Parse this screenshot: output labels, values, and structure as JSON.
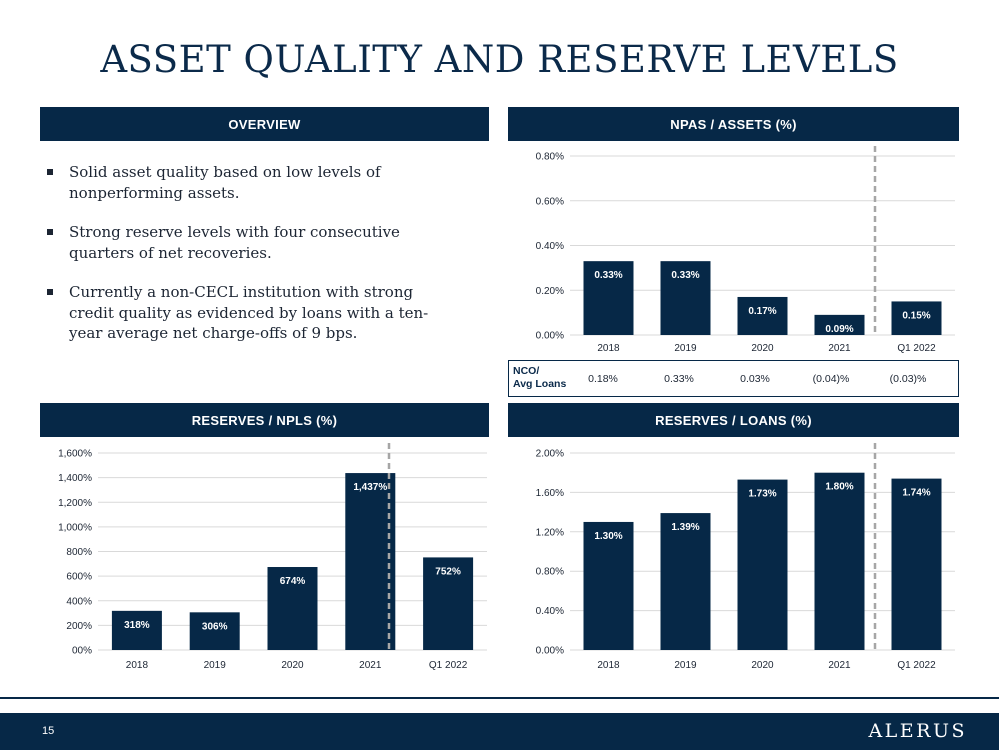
{
  "title": "ASSET QUALITY AND RESERVE LEVELS",
  "panels": {
    "overview": "OVERVIEW",
    "npas": "NPAS / ASSETS (%)",
    "reserves_npls": "RESERVES / NPLS (%)",
    "reserves_loans": "RESERVES / LOANS (%)"
  },
  "overview_bullets": [
    "Solid asset quality based on low levels of nonperforming assets.",
    "Strong reserve levels with four consecutive quarters of net recoveries.",
    "Currently a non-CECL institution with strong credit quality as evidenced by loans with a ten-year average net charge-offs of 9 bps."
  ],
  "nco": {
    "label_line1": "NCO/",
    "label_line2": "Avg Loans",
    "values": [
      "0.18%",
      "0.33%",
      "0.03%",
      "(0.04)%",
      "(0.03)%"
    ]
  },
  "footer": {
    "page_number": "15",
    "logo": "ALERUS"
  },
  "colors": {
    "navy": "#062847",
    "grid": "#d9d9d9",
    "divider": "#a6a6a6"
  },
  "chart_data": [
    {
      "id": "npas",
      "type": "bar",
      "title": "NPAS / ASSETS (%)",
      "categories": [
        "2018",
        "2019",
        "2020",
        "2021",
        "Q1 2022"
      ],
      "values": [
        0.33,
        0.33,
        0.17,
        0.09,
        0.15
      ],
      "labels": [
        "0.33%",
        "0.33%",
        "0.17%",
        "0.09%",
        "0.15%"
      ],
      "ylim": [
        0,
        0.8
      ],
      "yticks": [
        0,
        0.2,
        0.4,
        0.6,
        0.8
      ],
      "ytick_labels": [
        "0.00%",
        "0.20%",
        "0.40%",
        "0.60%",
        "0.80%"
      ],
      "grid": true
    },
    {
      "id": "reserves_npls",
      "type": "bar",
      "title": "RESERVES / NPLS (%)",
      "categories": [
        "2018",
        "2019",
        "2020",
        "2021",
        "Q1 2022"
      ],
      "values": [
        318,
        306,
        674,
        1437,
        752
      ],
      "labels": [
        "318%",
        "306%",
        "674%",
        "1,437%",
        "752%"
      ],
      "ylim": [
        0,
        1600
      ],
      "yticks": [
        0,
        200,
        400,
        600,
        800,
        1000,
        1200,
        1400,
        1600
      ],
      "ytick_labels": [
        "00%",
        "200%",
        "400%",
        "600%",
        "800%",
        "1,000%",
        "1,200%",
        "1,400%",
        "1,600%"
      ],
      "grid": true
    },
    {
      "id": "reserves_loans",
      "type": "bar",
      "title": "RESERVES / LOANS (%)",
      "categories": [
        "2018",
        "2019",
        "2020",
        "2021",
        "Q1 2022"
      ],
      "values": [
        1.3,
        1.39,
        1.73,
        1.8,
        1.74
      ],
      "labels": [
        "1.30%",
        "1.39%",
        "1.73%",
        "1.80%",
        "1.74%"
      ],
      "ylim": [
        0,
        2.0
      ],
      "yticks": [
        0,
        0.4,
        0.8,
        1.2,
        1.6,
        2.0
      ],
      "ytick_labels": [
        "0.00%",
        "0.40%",
        "0.80%",
        "1.20%",
        "1.60%",
        "2.00%"
      ],
      "grid": true
    }
  ]
}
